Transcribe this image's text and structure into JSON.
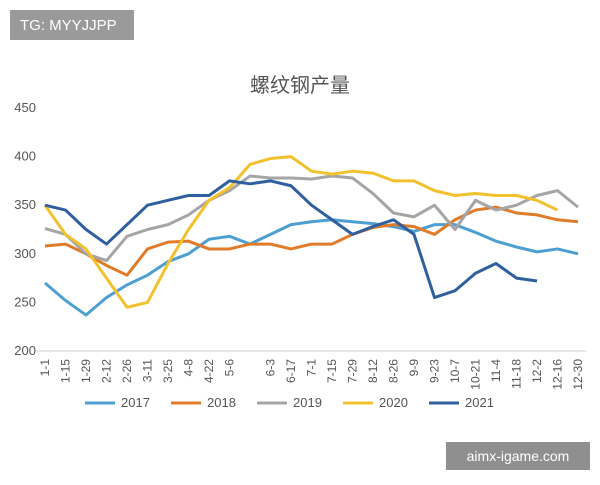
{
  "chart_data": {
    "type": "line",
    "title": "螺纹钢产量",
    "categories": [
      "1-1",
      "1-15",
      "1-29",
      "2-12",
      "2-26",
      "3-11",
      "3-25",
      "4-8",
      "4-22",
      "5-6",
      null,
      "6-3",
      "6-17",
      "7-1",
      "7-15",
      "7-29",
      "8-12",
      "8-26",
      "9-9",
      "9-23",
      "10-7",
      "10-21",
      "11-4",
      "11-18",
      "12-2",
      "12-16",
      "12-30"
    ],
    "series": [
      {
        "name": "2017",
        "color": "#4e9fd1",
        "values": [
          270,
          252,
          237,
          255,
          268,
          278,
          292,
          300,
          315,
          318,
          310,
          320,
          330,
          333,
          335,
          333,
          331,
          328,
          323,
          330,
          330,
          322,
          313,
          307,
          302,
          305,
          300
        ]
      },
      {
        "name": "2018",
        "color": "#e07b2a",
        "values": [
          308,
          310,
          300,
          288,
          278,
          305,
          312,
          313,
          305,
          305,
          310,
          310,
          305,
          310,
          310,
          320,
          327,
          330,
          328,
          320,
          335,
          345,
          348,
          342,
          340,
          335,
          333
        ]
      },
      {
        "name": "2019",
        "color": "#a5a5a5",
        "values": [
          326,
          320,
          300,
          293,
          318,
          325,
          330,
          340,
          355,
          365,
          380,
          378,
          378,
          377,
          380,
          378,
          362,
          342,
          338,
          350,
          325,
          355,
          345,
          350,
          360,
          365,
          348
        ]
      },
      {
        "name": "2020",
        "color": "#f2c12e",
        "values": [
          350,
          320,
          305,
          275,
          245,
          250,
          290,
          325,
          355,
          368,
          392,
          398,
          400,
          385,
          382,
          385,
          383,
          375,
          375,
          365,
          360,
          362,
          360,
          360,
          355,
          345,
          null
        ]
      },
      {
        "name": "2021",
        "color": "#2f5f9e",
        "values": [
          350,
          345,
          325,
          310,
          330,
          350,
          355,
          360,
          360,
          375,
          372,
          375,
          370,
          350,
          335,
          320,
          328,
          335,
          320,
          255,
          262,
          280,
          290,
          275,
          272,
          null,
          null
        ]
      }
    ],
    "ylim": [
      200,
      450
    ],
    "yticks": [
      200,
      250,
      300,
      350,
      400,
      450
    ],
    "grid": false,
    "legend": "bottom"
  },
  "watermarks": {
    "top": "TG: MYYJJPP",
    "bottom": "aimx-igame.com"
  }
}
